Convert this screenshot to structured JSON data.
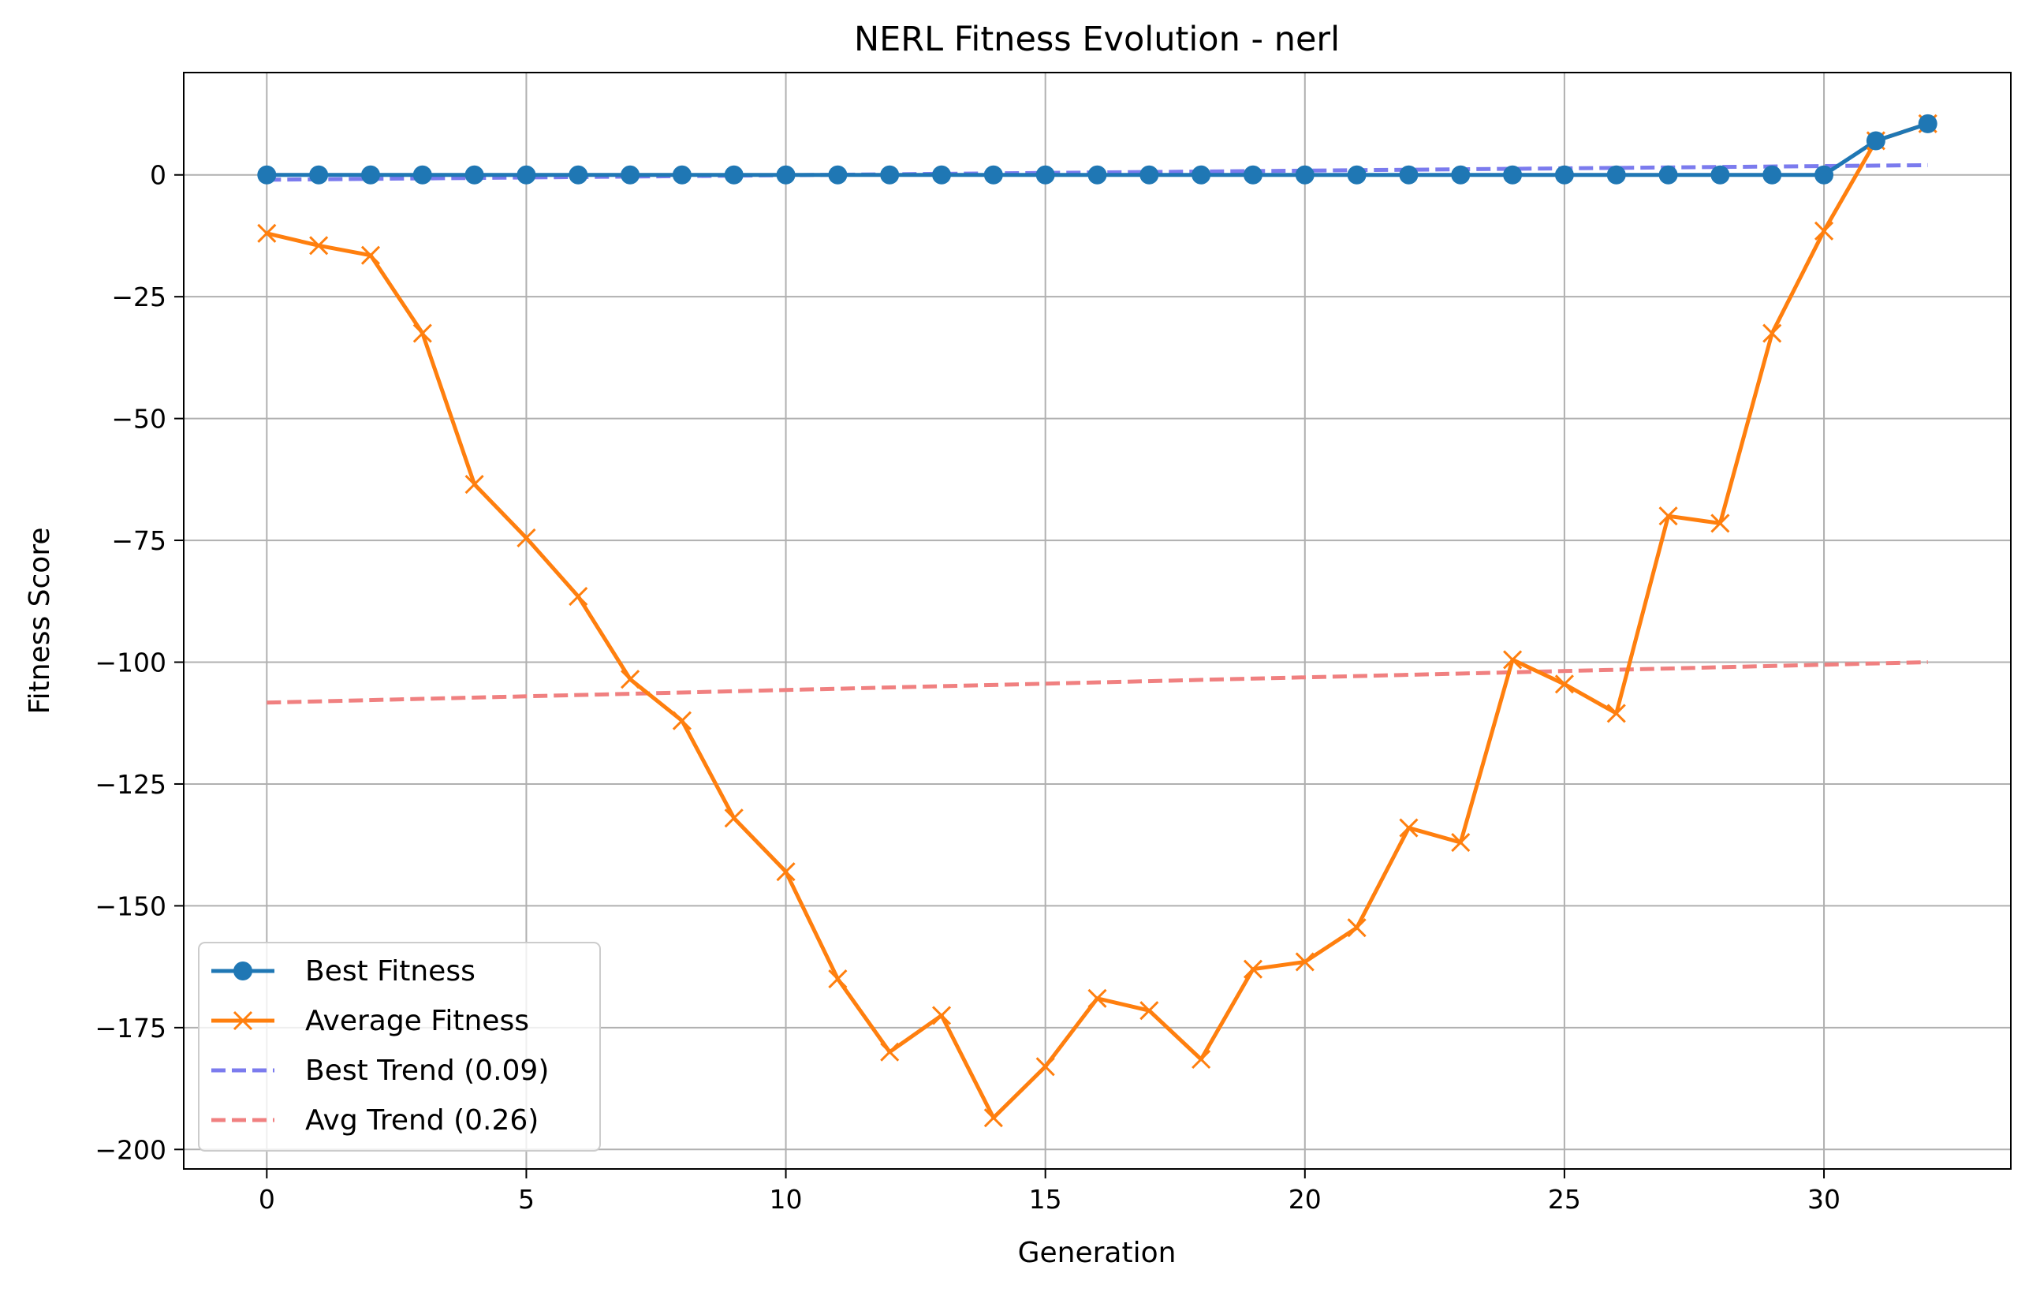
{
  "chart_data": {
    "type": "line",
    "title": "NERL Fitness Evolution - nerl",
    "xlabel": "Generation",
    "ylabel": "Fitness Score",
    "xlim": [
      -1.6,
      33.6
    ],
    "ylim": [
      -204,
      21
    ],
    "xticks": [
      0,
      5,
      10,
      15,
      20,
      25,
      30
    ],
    "yticks": [
      0,
      -25,
      -50,
      -75,
      -100,
      -125,
      -150,
      -175,
      -200
    ],
    "grid": true,
    "legend_position": "lower-left",
    "x": [
      0,
      1,
      2,
      3,
      4,
      5,
      6,
      7,
      8,
      9,
      10,
      11,
      12,
      13,
      14,
      15,
      16,
      17,
      18,
      19,
      20,
      21,
      22,
      23,
      24,
      25,
      26,
      27,
      28,
      29,
      30,
      31,
      32
    ],
    "series": [
      {
        "name": "Best Fitness",
        "color": "#1f77b4",
        "marker": "circle",
        "values": [
          0,
          0,
          0,
          0,
          0,
          0,
          0,
          0,
          0,
          0,
          0,
          0,
          0,
          0,
          0,
          0,
          0,
          0,
          0,
          0,
          0,
          0,
          0,
          0,
          0,
          0,
          0,
          0,
          0,
          0,
          0,
          7,
          10.5
        ]
      },
      {
        "name": "Average Fitness",
        "color": "#ff7f0e",
        "marker": "x",
        "values": [
          -12,
          -14.5,
          -16.5,
          -32.5,
          -63.5,
          -74.5,
          -86.5,
          -103.5,
          -112,
          -132,
          -143,
          -165,
          -180,
          -172.5,
          -193.5,
          -183,
          -169,
          -171.5,
          -181.5,
          -163,
          -161.5,
          -154.5,
          -134,
          -137,
          -99.5,
          -104.5,
          -110.5,
          -70,
          -71.5,
          -32.5,
          -11.5,
          7,
          10.5
        ]
      }
    ],
    "trends": [
      {
        "name": "Best Trend (0.09)",
        "color": "#7b7bee",
        "x": [
          0,
          32
        ],
        "y": [
          -1,
          2
        ]
      },
      {
        "name": "Avg Trend (0.26)",
        "color": "#f08080",
        "x": [
          0,
          32
        ],
        "y": [
          -108.3,
          -100
        ]
      }
    ]
  }
}
